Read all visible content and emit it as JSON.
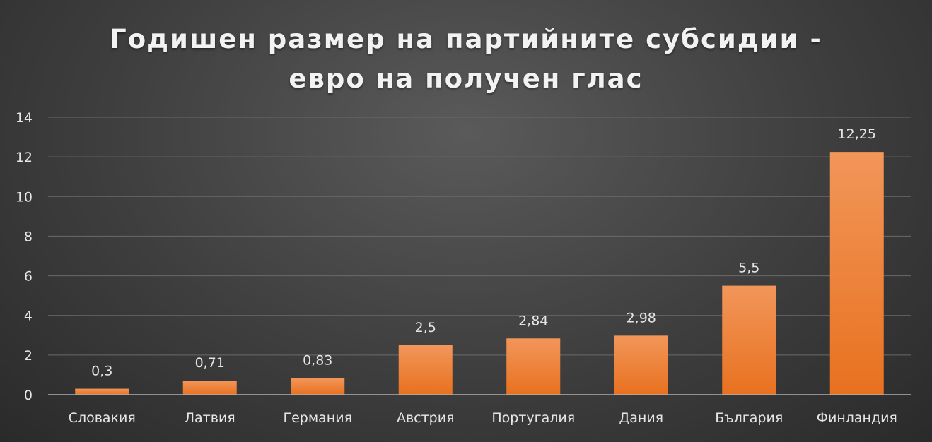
{
  "chart_data": {
    "type": "bar",
    "title_lines": [
      "Годишен размер на партийните субсидии -",
      "евро на получен глас"
    ],
    "categories": [
      "Словакия",
      "Латвия",
      "Германия",
      "Австрия",
      "Португалия",
      "Дания",
      "България",
      "Финландия"
    ],
    "values": [
      0.3,
      0.71,
      0.83,
      2.5,
      2.84,
      2.98,
      5.5,
      12.25
    ],
    "data_labels": [
      "0,3",
      "0,71",
      "0,83",
      "2,5",
      "2,84",
      "2,98",
      "5,5",
      "12,25"
    ],
    "y_ticks": [
      "0",
      "2",
      "4",
      "6",
      "8",
      "10",
      "12",
      "14"
    ],
    "ylim": [
      0,
      14
    ],
    "ytick_step": 2,
    "grid": true,
    "legend": "none",
    "colors": {
      "bar_top": "#f2965a",
      "bar_bottom": "#e8711f",
      "grid": "#6a6a6a",
      "axis": "#b0b0b0",
      "text": "#e6e6e6"
    }
  }
}
